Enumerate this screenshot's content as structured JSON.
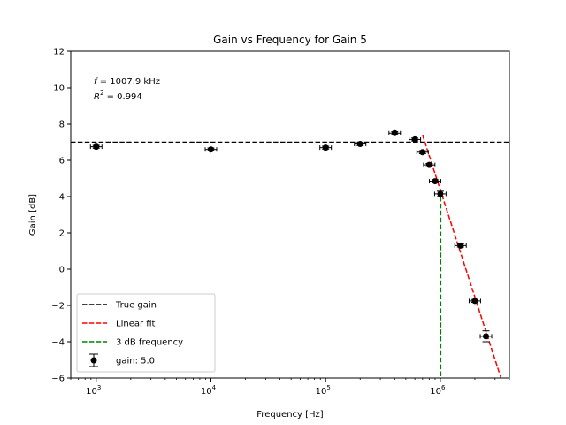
{
  "chart_data": {
    "type": "scatter",
    "title": "Gain vs Frequency for Gain 5",
    "xlabel": "Frequency [Hz]",
    "ylabel": "Gain [dB]",
    "xscale": "log",
    "xlim": [
      600,
      4000000
    ],
    "ylim": [
      -6,
      12
    ],
    "grid": false,
    "legend_position": "lower-left",
    "x_tick_labels": [
      {
        "base": "10",
        "exp": "3"
      },
      {
        "base": "10",
        "exp": "4"
      },
      {
        "base": "10",
        "exp": "5"
      },
      {
        "base": "10",
        "exp": "6"
      }
    ],
    "y_ticks": [
      12,
      10,
      8,
      6,
      4,
      2,
      0,
      -2,
      -4,
      -6
    ],
    "y_tick_labels": [
      "12",
      "10",
      "8",
      "6",
      "4",
      "2",
      "0",
      "−2",
      "−4",
      "−6"
    ],
    "annotation": {
      "line1_var": "f",
      "line1_rest": " = 1007.9 kHz",
      "line2_var": "R",
      "line2_exp": "2",
      "line2_rest": " = 0.994"
    },
    "series": [
      {
        "name": "gain: 5.0",
        "kind": "errorbar",
        "color": "#000000",
        "points": [
          {
            "x": 1000,
            "y": 6.75,
            "xerr": 0.05,
            "yerr": 0.08
          },
          {
            "x": 10000,
            "y": 6.6,
            "xerr": 0.05,
            "yerr": 0.08
          },
          {
            "x": 100000,
            "y": 6.7,
            "xerr": 0.05,
            "yerr": 0.08
          },
          {
            "x": 200000,
            "y": 6.9,
            "xerr": 0.05,
            "yerr": 0.08
          },
          {
            "x": 400000,
            "y": 7.5,
            "xerr": 0.05,
            "yerr": 0.08
          },
          {
            "x": 600000,
            "y": 7.15,
            "xerr": 0.05,
            "yerr": 0.08
          },
          {
            "x": 700000,
            "y": 6.45,
            "xerr": 0.05,
            "yerr": 0.08
          },
          {
            "x": 800000,
            "y": 5.75,
            "xerr": 0.05,
            "yerr": 0.08
          },
          {
            "x": 900000,
            "y": 4.85,
            "xerr": 0.05,
            "yerr": 0.08
          },
          {
            "x": 1000000,
            "y": 4.15,
            "xerr": 0.05,
            "yerr": 0.15
          },
          {
            "x": 1500000,
            "y": 1.3,
            "xerr": 0.05,
            "yerr": 0.08
          },
          {
            "x": 2000000,
            "y": -1.75,
            "xerr": 0.05,
            "yerr": 0.08
          },
          {
            "x": 2500000,
            "y": -3.7,
            "xerr": 0.05,
            "yerr": 0.3
          }
        ]
      },
      {
        "name": "True gain",
        "kind": "hline",
        "color": "#000000",
        "y": 7.0
      },
      {
        "name": "Linear fit",
        "kind": "line",
        "color": "#ff0000",
        "points": [
          {
            "x": 700000,
            "y": 7.4
          },
          {
            "x": 3500000,
            "y": -6.3
          }
        ]
      },
      {
        "name": "3 dB frequency",
        "kind": "vline",
        "color": "#008000",
        "x": 1007900,
        "y_top": 4.0
      }
    ],
    "legend": [
      {
        "label": "True gain",
        "color": "#000000",
        "style": "dashed"
      },
      {
        "label": "Linear fit",
        "color": "#ff0000",
        "style": "dashed"
      },
      {
        "label": "3 dB frequency",
        "color": "#008000",
        "style": "dashed"
      },
      {
        "label": "gain: 5.0",
        "color": "#000000",
        "style": "errorbar"
      }
    ]
  }
}
